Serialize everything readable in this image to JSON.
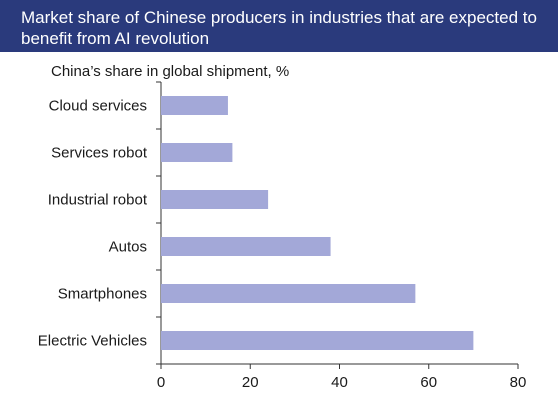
{
  "chart_data": {
    "type": "bar",
    "orientation": "horizontal",
    "title": "Market share of Chinese producers in industries that are expected to benefit from AI revolution",
    "ylabel": "China’s share in global shipment, %",
    "categories": [
      "Cloud services",
      "Services robot",
      "Industrial robot",
      "Autos",
      "Smartphones",
      "Electric Vehicles"
    ],
    "values": [
      15,
      16,
      24,
      38,
      57,
      70
    ],
    "xlim": [
      0,
      80
    ],
    "xticks": [
      "0",
      "20",
      "40",
      "60",
      "80"
    ],
    "bar_color": "#a3a8d8",
    "title_background": "#2a3a7c",
    "grid": false
  }
}
